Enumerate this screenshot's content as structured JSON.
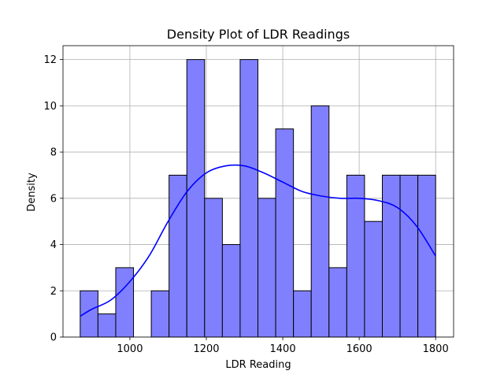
{
  "chart_data": {
    "type": "bar",
    "title": "Density Plot of LDR Readings",
    "xlabel": "LDR Reading",
    "ylabel": "Density",
    "xlim": [
      825,
      1847
    ],
    "ylim": [
      0,
      12.6
    ],
    "xticks": [
      1000,
      1200,
      1400,
      1600,
      1800
    ],
    "yticks": [
      0,
      2,
      4,
      6,
      8,
      10,
      12
    ],
    "grid": true,
    "bins": [
      {
        "start": 870,
        "end": 916.5,
        "count": 2
      },
      {
        "start": 916.5,
        "end": 963,
        "count": 1
      },
      {
        "start": 963,
        "end": 1009.5,
        "count": 3
      },
      {
        "start": 1009.5,
        "end": 1056,
        "count": 0
      },
      {
        "start": 1056,
        "end": 1102.5,
        "count": 2
      },
      {
        "start": 1102.5,
        "end": 1149,
        "count": 7
      },
      {
        "start": 1149,
        "end": 1195.5,
        "count": 12
      },
      {
        "start": 1195.5,
        "end": 1242,
        "count": 6
      },
      {
        "start": 1242,
        "end": 1288.5,
        "count": 4
      },
      {
        "start": 1288.5,
        "end": 1335,
        "count": 12
      },
      {
        "start": 1335,
        "end": 1381.5,
        "count": 6
      },
      {
        "start": 1381.5,
        "end": 1428,
        "count": 9
      },
      {
        "start": 1428,
        "end": 1474.5,
        "count": 2
      },
      {
        "start": 1474.5,
        "end": 1521,
        "count": 10
      },
      {
        "start": 1521,
        "end": 1567.5,
        "count": 3
      },
      {
        "start": 1567.5,
        "end": 1614,
        "count": 7
      },
      {
        "start": 1614,
        "end": 1660.5,
        "count": 5
      },
      {
        "start": 1660.5,
        "end": 1707,
        "count": 7
      },
      {
        "start": 1707,
        "end": 1753.5,
        "count": 7
      },
      {
        "start": 1753.5,
        "end": 1800,
        "count": 7
      }
    ],
    "kde": {
      "x": [
        870,
        900,
        950,
        1000,
        1050,
        1100,
        1150,
        1200,
        1250,
        1300,
        1350,
        1400,
        1450,
        1500,
        1550,
        1600,
        1650,
        1700,
        1750,
        1800
      ],
      "y": [
        0.9,
        1.2,
        1.6,
        2.4,
        3.5,
        5.0,
        6.3,
        7.1,
        7.4,
        7.4,
        7.1,
        6.7,
        6.3,
        6.1,
        6.0,
        6.0,
        5.9,
        5.6,
        4.8,
        3.5
      ]
    },
    "colors": {
      "bar_fill": "#8080ff",
      "bar_edge": "#000000",
      "kde_line": "#0000ff",
      "grid": "#b0b0b0"
    }
  }
}
